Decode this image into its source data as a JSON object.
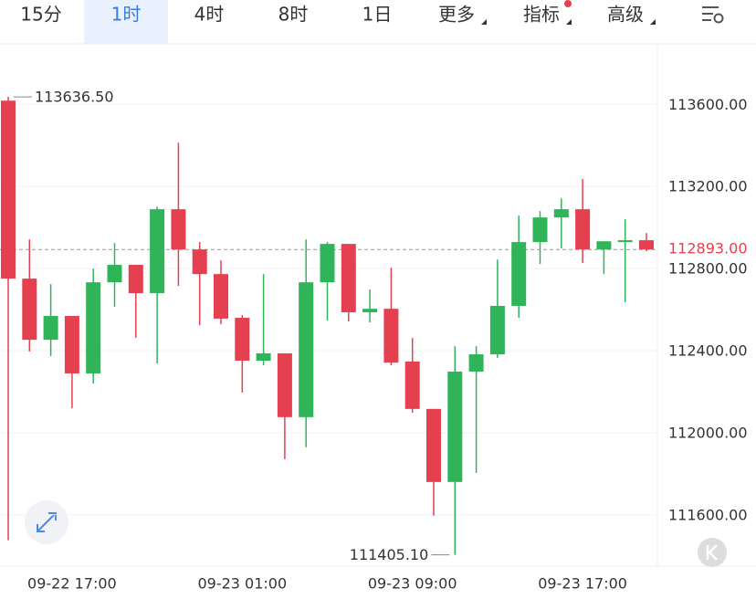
{
  "tabs": [
    "15分",
    "1时",
    "4时",
    "8时",
    "1日",
    "更多",
    "指标",
    "高级"
  ],
  "selected_tab": 1,
  "chart_data": {
    "type": "candlestick",
    "categories": [
      null,
      null,
      null,
      "09-22 17:00",
      null,
      null,
      null,
      null,
      null,
      null,
      null,
      "09-23 01:00",
      null,
      null,
      null,
      null,
      null,
      null,
      null,
      "09-23 09:00",
      null,
      null,
      null,
      null,
      null,
      null,
      null,
      "09-23 17:00",
      null,
      null,
      null
    ],
    "open": [
      113618,
      112751,
      112453,
      112569,
      112289,
      112733,
      112818,
      112680,
      113089,
      112893,
      112773,
      112560,
      112351,
      112387,
      112076,
      112733,
      112920,
      112587,
      112604,
      112347,
      112116,
      111760,
      112298,
      112382,
      112618,
      112929,
      113049,
      113089,
      112893,
      112929,
      112938
    ],
    "high": [
      113636.5,
      112942,
      112724,
      112569,
      112800,
      112924,
      112818,
      113102,
      113413,
      112929,
      112840,
      112573,
      112773,
      112387,
      112942,
      112929,
      112920,
      112698,
      112804,
      112462,
      112116,
      112422,
      112422,
      112844,
      113058,
      113080,
      113142,
      113236,
      112933,
      113040,
      112973
    ],
    "low": [
      111476,
      112396,
      112373,
      112120,
      112240,
      112613,
      112462,
      112338,
      112716,
      112524,
      112529,
      112196,
      112329,
      111871,
      111929,
      112547,
      112542,
      112538,
      112329,
      112098,
      111596,
      111405.1,
      111804,
      112364,
      112560,
      112822,
      112898,
      112827,
      112773,
      112636,
      112884
    ],
    "close": [
      112751,
      112453,
      112569,
      112289,
      112733,
      112818,
      112680,
      113089,
      112893,
      112773,
      112556,
      112351,
      112387,
      112076,
      112733,
      112920,
      112587,
      112604,
      112342,
      112116,
      111760,
      112298,
      112382,
      112618,
      112929,
      113049,
      113089,
      112893,
      112933,
      112938,
      112893
    ],
    "up_color": "#2fb45a",
    "down_color": "#e5404f",
    "ylim": [
      111350,
      113895
    ],
    "yticks": [
      {
        "value": 111600,
        "label": "111600.00"
      },
      {
        "value": 112000,
        "label": "112000.00"
      },
      {
        "value": 112400,
        "label": "112400.00"
      },
      {
        "value": 112800,
        "label": "112800.00"
      },
      {
        "value": 113200,
        "label": "113200.00"
      },
      {
        "value": 113600,
        "label": "113600.00"
      }
    ],
    "grid": true,
    "last_price": {
      "value": 112893,
      "label": "112893.00"
    },
    "annotations": [
      {
        "value": 113636.5,
        "label": "113636.50",
        "index": 0,
        "side": "right"
      },
      {
        "value": 111405.1,
        "label": "111405.10",
        "index": 21,
        "side": "left"
      }
    ]
  }
}
